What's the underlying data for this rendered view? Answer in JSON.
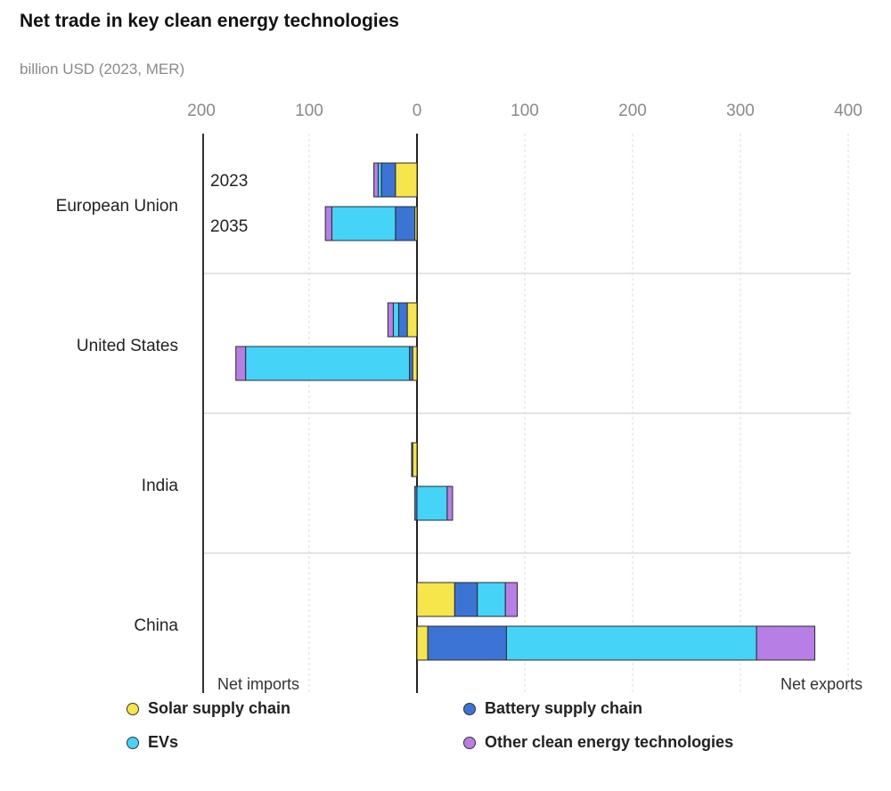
{
  "header": {
    "title": "Net trade in key clean energy technologies",
    "subtitle": "billion USD (2023, MER)"
  },
  "chart_data": {
    "type": "bar",
    "orientation": "horizontal",
    "stacked": true,
    "title": "Net trade in key clean energy technologies",
    "unit": "billion USD (2023, MER)",
    "xlim": [
      -200,
      400
    ],
    "xticks": [
      -200,
      -100,
      0,
      100,
      200,
      300,
      400
    ],
    "xtick_labels": [
      "200",
      "100",
      "0",
      "100",
      "200",
      "300",
      "400"
    ],
    "left_label": "Net imports",
    "right_label": "Net exports",
    "year_labels": [
      "2023",
      "2035"
    ],
    "grid": true,
    "legend_position": "bottom",
    "colors": {
      "solar": "#f7e64b",
      "battery": "#3c74d6",
      "evs": "#45d4f8",
      "other": "#b77ee6"
    },
    "series": [
      {
        "key": "solar",
        "name": "Solar supply chain"
      },
      {
        "key": "battery",
        "name": "Battery supply chain"
      },
      {
        "key": "evs",
        "name": "EVs"
      },
      {
        "key": "other",
        "name": "Other clean energy technologies"
      }
    ],
    "regions": [
      {
        "name": "European Union",
        "years": [
          {
            "year": "2023",
            "values": {
              "solar": -20,
              "battery": -13,
              "evs": -3,
              "other": -4
            }
          },
          {
            "year": "2035",
            "values": {
              "solar": -2,
              "battery": -18,
              "evs": -59,
              "other": -6
            }
          }
        ]
      },
      {
        "name": "United States",
        "years": [
          {
            "year": "2023",
            "values": {
              "solar": -9,
              "battery": -8,
              "evs": -5,
              "other": -5
            }
          },
          {
            "year": "2035",
            "values": {
              "solar": -4,
              "battery": -3,
              "evs": -152,
              "other": -9
            }
          }
        ]
      },
      {
        "name": "India",
        "years": [
          {
            "year": "2023",
            "values": {
              "solar": -4,
              "battery": -1,
              "evs": 0,
              "other": 0
            }
          },
          {
            "year": "2035",
            "values": {
              "solar": 0,
              "battery": -2,
              "evs": 28,
              "other": 5
            }
          }
        ]
      },
      {
        "name": "China",
        "years": [
          {
            "year": "2023",
            "values": {
              "solar": 35,
              "battery": 21,
              "evs": 26,
              "other": 11
            }
          },
          {
            "year": "2035",
            "values": {
              "solar": 10,
              "battery": 73,
              "evs": 232,
              "other": 54
            }
          }
        ]
      }
    ]
  }
}
